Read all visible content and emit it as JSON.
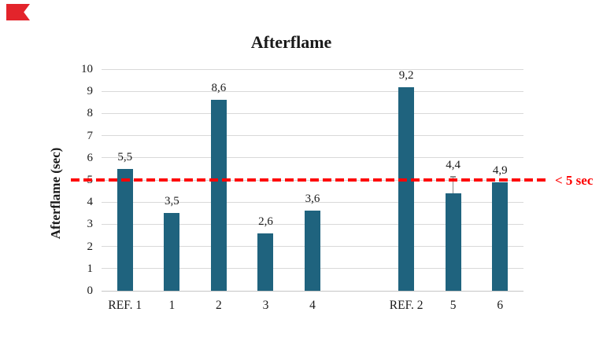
{
  "page": {
    "background": "#ffffff"
  },
  "marker": {
    "name": "red-flag-marker",
    "color": "#e3242b"
  },
  "text_color": "#1a1a1a",
  "chart_data": {
    "type": "bar",
    "title": "Afterflame",
    "ylabel": "Afterflame (sec)",
    "xlabel": "",
    "ylim": [
      0,
      10
    ],
    "yticks": [
      0,
      1,
      2,
      3,
      4,
      5,
      6,
      7,
      8,
      9,
      10
    ],
    "grid": true,
    "gridline_color": "#d9d9d9",
    "baseline_color": "#c6c6c6",
    "bar_color": "#1f637e",
    "categories": [
      "REF. 1",
      "1",
      "2",
      "3",
      "4",
      "REF. 2",
      "5",
      "6"
    ],
    "values": [
      5.5,
      3.5,
      8.6,
      2.6,
      3.6,
      9.2,
      4.4,
      4.9
    ],
    "value_labels": [
      "5,5",
      "3,5",
      "8,6",
      "2,6",
      "3,6",
      "9,2",
      "4,4",
      "4,9"
    ],
    "slots": [
      0,
      1,
      2,
      3,
      4,
      6,
      7,
      8
    ],
    "n_slots": 9,
    "error_bar": {
      "category": "5",
      "index": 6,
      "from": 4.4,
      "to": 5.15,
      "color": "#8a8a8a"
    },
    "threshold_line": {
      "value": 5,
      "style": "dashed",
      "color": "#fe0000",
      "label": "< 5 sec"
    },
    "legend": null
  }
}
